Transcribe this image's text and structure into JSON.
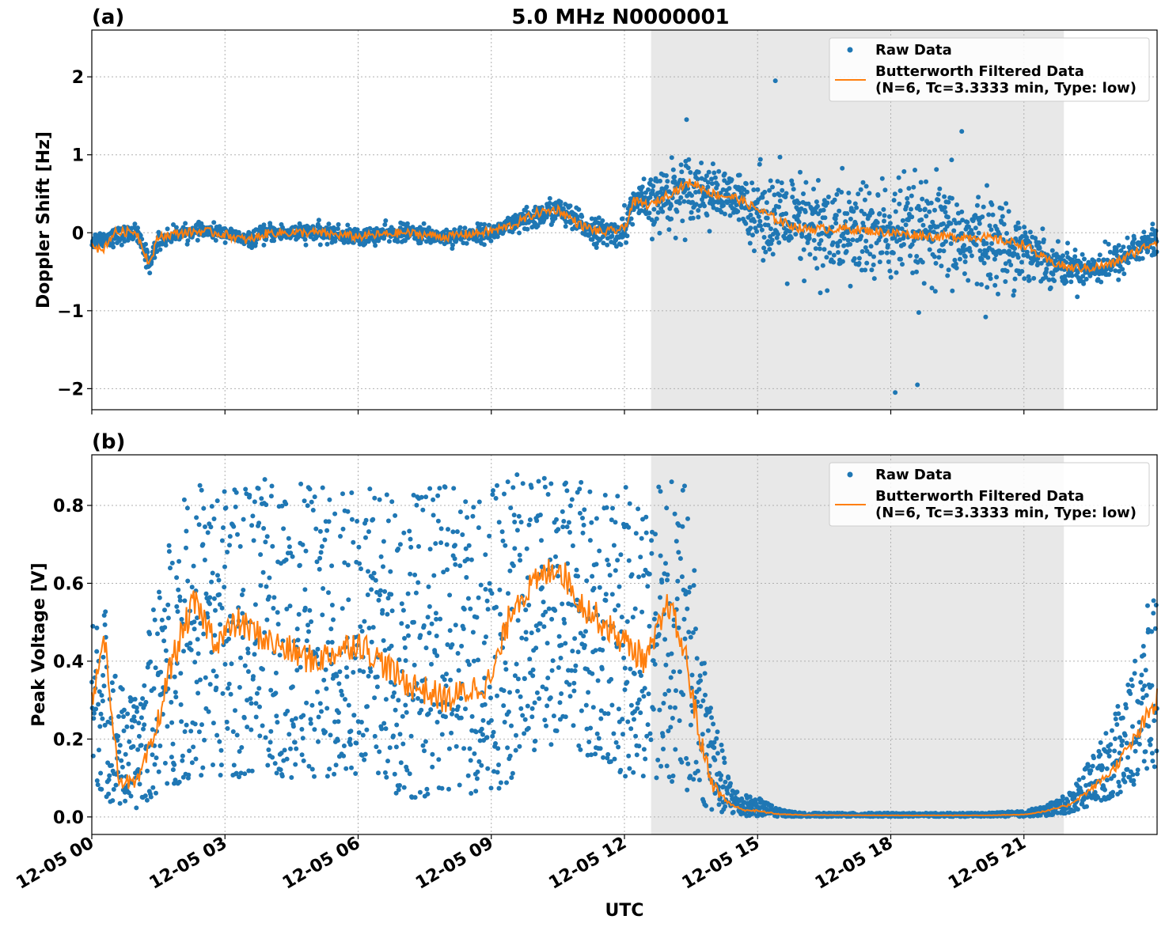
{
  "figure": {
    "title": "5.0 MHz N0000001",
    "xlabel": "UTC",
    "x_tick_labels": [
      "12-05 00",
      "12-05 03",
      "12-05 06",
      "12-05 09",
      "12-05 12",
      "12-05 15",
      "12-05 18",
      "12-05 21"
    ]
  },
  "colors": {
    "raw": "#1f77b4",
    "filtered": "#ff7f0e",
    "shade": "#e8e8e8",
    "grid": "#b0b0b0"
  },
  "legend": {
    "raw_label": "Raw Data",
    "filtered_label_line1": "Butterworth Filtered Data",
    "filtered_label_line2": "(N=6, Tc=3.3333 min, Type: low)"
  },
  "chart_data": [
    {
      "type": "scatter",
      "panel_label": "(a)",
      "ylabel": "Doppler Shift [Hz]",
      "xlim_hours": [
        0,
        24
      ],
      "ylim": [
        -2.27,
        2.6
      ],
      "y_ticks": [
        -2,
        -1,
        0,
        1,
        2
      ],
      "y_tick_labels": [
        "−2",
        "−1",
        "0",
        "1",
        "2"
      ],
      "shaded_interval_hours": [
        12.6,
        21.9
      ],
      "grid": true,
      "legend_position": "upper right",
      "series": [
        {
          "name": "Raw Data",
          "kind": "points",
          "hours": [
            0,
            0.5,
            1,
            1.3,
            1.5,
            2,
            2.5,
            3,
            3.5,
            4,
            5,
            6,
            7,
            8,
            9,
            9.5,
            10,
            10.5,
            11,
            11.5,
            12,
            12.2,
            12.6,
            13,
            13.5,
            14,
            14.5,
            15,
            15.5,
            16,
            17,
            18,
            19,
            20,
            21,
            21.5,
            22,
            22.5,
            23,
            23.5,
            24
          ],
          "center": [
            -0.1,
            -0.05,
            0.0,
            -0.4,
            -0.1,
            0.0,
            0.02,
            0.0,
            -0.1,
            0.0,
            0.0,
            -0.05,
            0.0,
            -0.05,
            0.0,
            0.1,
            0.2,
            0.3,
            0.1,
            0.0,
            0.0,
            0.4,
            0.35,
            0.5,
            0.6,
            0.5,
            0.4,
            0.3,
            0.15,
            0.05,
            0.0,
            0.0,
            -0.05,
            -0.1,
            -0.2,
            -0.35,
            -0.45,
            -0.45,
            -0.4,
            -0.2,
            -0.1
          ],
          "spread": [
            0.1,
            0.1,
            0.1,
            0.12,
            0.1,
            0.08,
            0.08,
            0.08,
            0.08,
            0.1,
            0.1,
            0.1,
            0.1,
            0.1,
            0.1,
            0.12,
            0.15,
            0.15,
            0.15,
            0.15,
            0.15,
            0.2,
            0.3,
            0.4,
            0.35,
            0.3,
            0.3,
            0.45,
            0.55,
            0.6,
            0.6,
            0.6,
            0.6,
            0.55,
            0.4,
            0.25,
            0.2,
            0.2,
            0.2,
            0.2,
            0.2
          ],
          "notable_extremes_hours_values": [
            [
              15.4,
              1.95
            ],
            [
              18.1,
              -2.05
            ],
            [
              18.6,
              -1.95
            ],
            [
              19.6,
              1.3
            ],
            [
              13.4,
              1.45
            ],
            [
              12.0,
              0.35
            ]
          ]
        },
        {
          "name": "Butterworth Filtered Data\n(N=6, Tc=3.3333 min, Type: low)",
          "kind": "line",
          "hours": [
            0,
            0.2,
            0.5,
            1,
            1.3,
            1.5,
            2,
            2.5,
            3,
            3.5,
            4,
            5,
            6,
            7,
            8,
            9,
            9.5,
            10,
            10.5,
            11,
            11.5,
            12,
            12.2,
            12.6,
            13,
            13.5,
            14,
            14.5,
            15,
            15.5,
            16,
            17,
            18,
            19,
            20,
            21,
            21.5,
            22,
            22.5,
            23,
            23.5,
            24
          ],
          "values": [
            -0.1,
            -0.25,
            0.0,
            0.02,
            -0.4,
            -0.05,
            0.0,
            0.02,
            -0.02,
            -0.1,
            0.0,
            0.0,
            -0.05,
            0.0,
            -0.05,
            0.02,
            0.1,
            0.25,
            0.3,
            0.1,
            0.0,
            0.05,
            0.4,
            0.35,
            0.5,
            0.65,
            0.5,
            0.45,
            0.3,
            0.15,
            0.05,
            0.05,
            0.0,
            -0.05,
            -0.05,
            -0.15,
            -0.35,
            -0.45,
            -0.45,
            -0.4,
            -0.25,
            -0.1
          ]
        }
      ]
    },
    {
      "type": "scatter",
      "panel_label": "(b)",
      "ylabel": "Peak Voltage [V]",
      "xlim_hours": [
        0,
        24
      ],
      "ylim": [
        -0.045,
        0.93
      ],
      "y_ticks": [
        0.0,
        0.2,
        0.4,
        0.6,
        0.8
      ],
      "y_tick_labels": [
        "0.0",
        "0.2",
        "0.4",
        "0.6",
        "0.8"
      ],
      "shaded_interval_hours": [
        12.6,
        21.9
      ],
      "grid": true,
      "legend_position": "upper right",
      "series": [
        {
          "name": "Raw Data",
          "kind": "points",
          "hours": [
            0,
            0.3,
            0.6,
            1.0,
            1.4,
            1.8,
            2.3,
            2.8,
            3.3,
            4.0,
            5.0,
            6.0,
            7.0,
            8.0,
            9.0,
            9.5,
            10.0,
            10.5,
            11.0,
            11.5,
            12.0,
            12.5,
            13.0,
            13.4,
            13.7,
            14.0,
            14.3,
            14.6,
            15.0,
            15.5,
            16,
            18,
            20,
            21,
            21.5,
            22,
            22.5,
            23,
            23.5,
            24
          ],
          "low": [
            0.1,
            0.05,
            0.02,
            0.02,
            0.05,
            0.08,
            0.1,
            0.1,
            0.1,
            0.1,
            0.1,
            0.1,
            0.05,
            0.05,
            0.05,
            0.1,
            0.15,
            0.2,
            0.15,
            0.15,
            0.1,
            0.1,
            0.1,
            0.05,
            0.03,
            0.01,
            0.005,
            0.003,
            0.002,
            0.001,
            0.001,
            0.001,
            0.001,
            0.001,
            0.003,
            0.01,
            0.03,
            0.05,
            0.08,
            0.1
          ],
          "high": [
            0.5,
            0.55,
            0.35,
            0.3,
            0.55,
            0.75,
            0.87,
            0.87,
            0.85,
            0.87,
            0.85,
            0.85,
            0.85,
            0.85,
            0.87,
            0.88,
            0.88,
            0.88,
            0.88,
            0.87,
            0.85,
            0.85,
            0.88,
            0.85,
            0.5,
            0.3,
            0.12,
            0.06,
            0.05,
            0.02,
            0.01,
            0.01,
            0.01,
            0.015,
            0.03,
            0.06,
            0.15,
            0.25,
            0.4,
            0.65
          ]
        },
        {
          "name": "Butterworth Filtered Data\n(N=6, Tc=3.3333 min, Type: low)",
          "kind": "line",
          "hours": [
            0,
            0.3,
            0.6,
            1.0,
            1.4,
            1.8,
            2.3,
            2.8,
            3.3,
            4.0,
            5.0,
            6.0,
            7.0,
            8.0,
            9.0,
            9.5,
            10.0,
            10.5,
            11.0,
            11.5,
            12.0,
            12.5,
            13.0,
            13.4,
            13.7,
            14.0,
            14.3,
            14.6,
            15.0,
            15.5,
            16,
            18,
            20,
            21,
            21.5,
            22,
            22.5,
            23,
            23.5,
            24
          ],
          "values": [
            0.3,
            0.45,
            0.1,
            0.08,
            0.2,
            0.4,
            0.55,
            0.45,
            0.5,
            0.45,
            0.4,
            0.45,
            0.35,
            0.3,
            0.35,
            0.55,
            0.6,
            0.65,
            0.55,
            0.5,
            0.45,
            0.4,
            0.55,
            0.4,
            0.2,
            0.08,
            0.04,
            0.02,
            0.015,
            0.007,
            0.005,
            0.004,
            0.004,
            0.006,
            0.015,
            0.03,
            0.07,
            0.12,
            0.2,
            0.3
          ]
        }
      ]
    }
  ]
}
